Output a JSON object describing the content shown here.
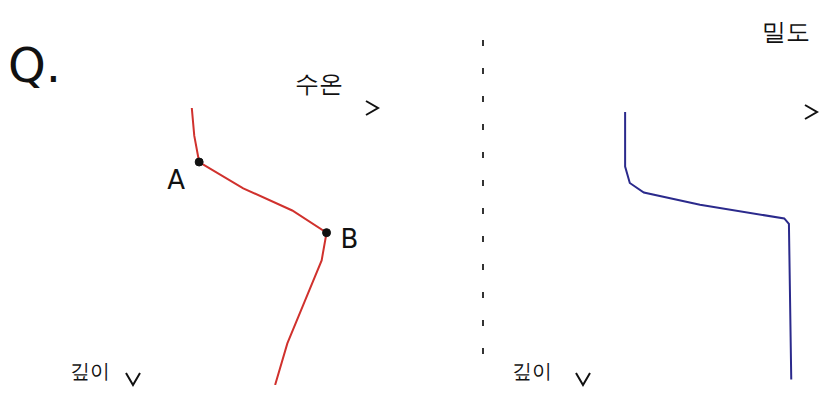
{
  "title": "Q.",
  "chart_data": [
    {
      "type": "line",
      "xlabel": "수온",
      "ylabel": "깊이",
      "color": "#d0312d",
      "xlim": [
        0,
        10
      ],
      "ylim": [
        0,
        10
      ],
      "xticks": [
        0,
        10
      ],
      "yticks": [
        0,
        10
      ],
      "tick_labels": false,
      "grid": false,
      "x": [
        2.4,
        2.5,
        2.7,
        4.5,
        6.5,
        7.9,
        7.7,
        7.0,
        6.3,
        5.8
      ],
      "y": [
        0,
        1,
        1.95,
        2.9,
        3.7,
        4.5,
        5.5,
        7,
        8.5,
        10
      ],
      "annotations": [
        {
          "text": "A",
          "x": 2.7,
          "y": 1.95
        },
        {
          "text": "B",
          "x": 7.9,
          "y": 4.5
        }
      ]
    },
    {
      "type": "line",
      "xlabel": "밀도",
      "ylabel": "깊이",
      "color": "#2b2a8c",
      "xlim": [
        0,
        10
      ],
      "ylim": [
        0,
        10
      ],
      "xticks": [
        0,
        10
      ],
      "yticks": [
        0,
        10
      ],
      "tick_labels": false,
      "grid": false,
      "x": [
        1.8,
        1.8,
        2.0,
        2.6,
        5.0,
        8.6,
        8.8,
        8.9
      ],
      "y": [
        0,
        2.0,
        2.6,
        2.95,
        3.4,
        3.9,
        4.1,
        9.8
      ],
      "annotations": []
    }
  ]
}
